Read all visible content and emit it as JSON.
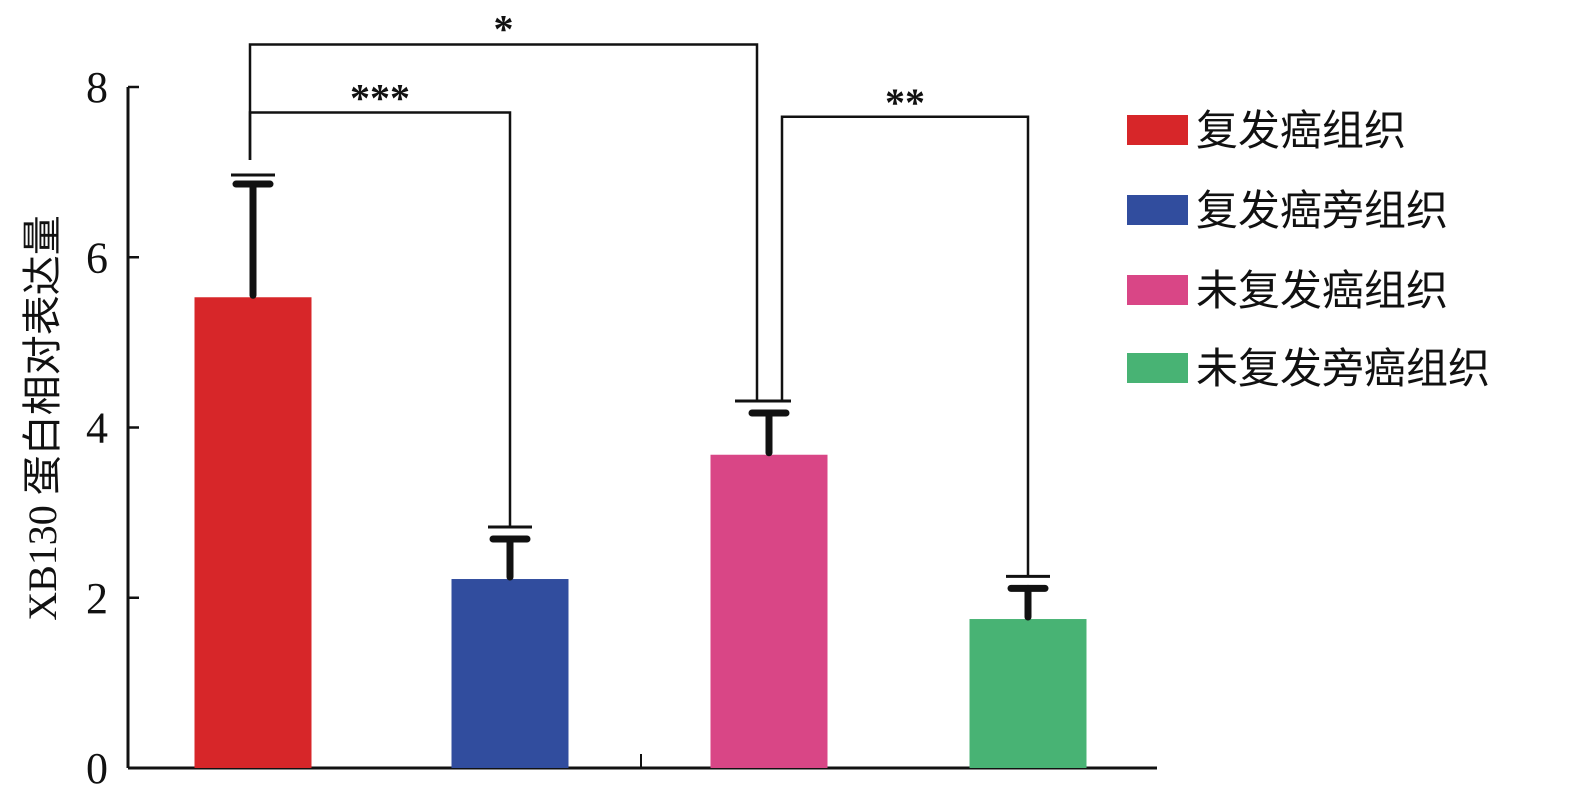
{
  "chart_data": {
    "type": "bar",
    "title": "",
    "xlabel": "",
    "ylabel": "XB130 蛋白相对表达量",
    "ylim": [
      0,
      8
    ],
    "yticks": [
      0,
      2,
      4,
      6,
      8
    ],
    "grid": false,
    "legend_position": "right",
    "categories": [
      "复发癌组织",
      "复发癌旁组织",
      "未复发癌组织",
      "未复发旁癌组织"
    ],
    "values": [
      5.53,
      2.22,
      3.68,
      1.75
    ],
    "errors": [
      1.33,
      0.47,
      0.49,
      0.36
    ],
    "colors": [
      "#d72629",
      "#314d9e",
      "#d94686",
      "#48b374"
    ],
    "significance": [
      {
        "from": 0,
        "to": 1,
        "label": "***",
        "level": 7.7
      },
      {
        "from": 0,
        "to": 2,
        "label": "*",
        "level": 8.5
      },
      {
        "from": 2,
        "to": 3,
        "label": "**",
        "level": 7.65
      }
    ]
  }
}
